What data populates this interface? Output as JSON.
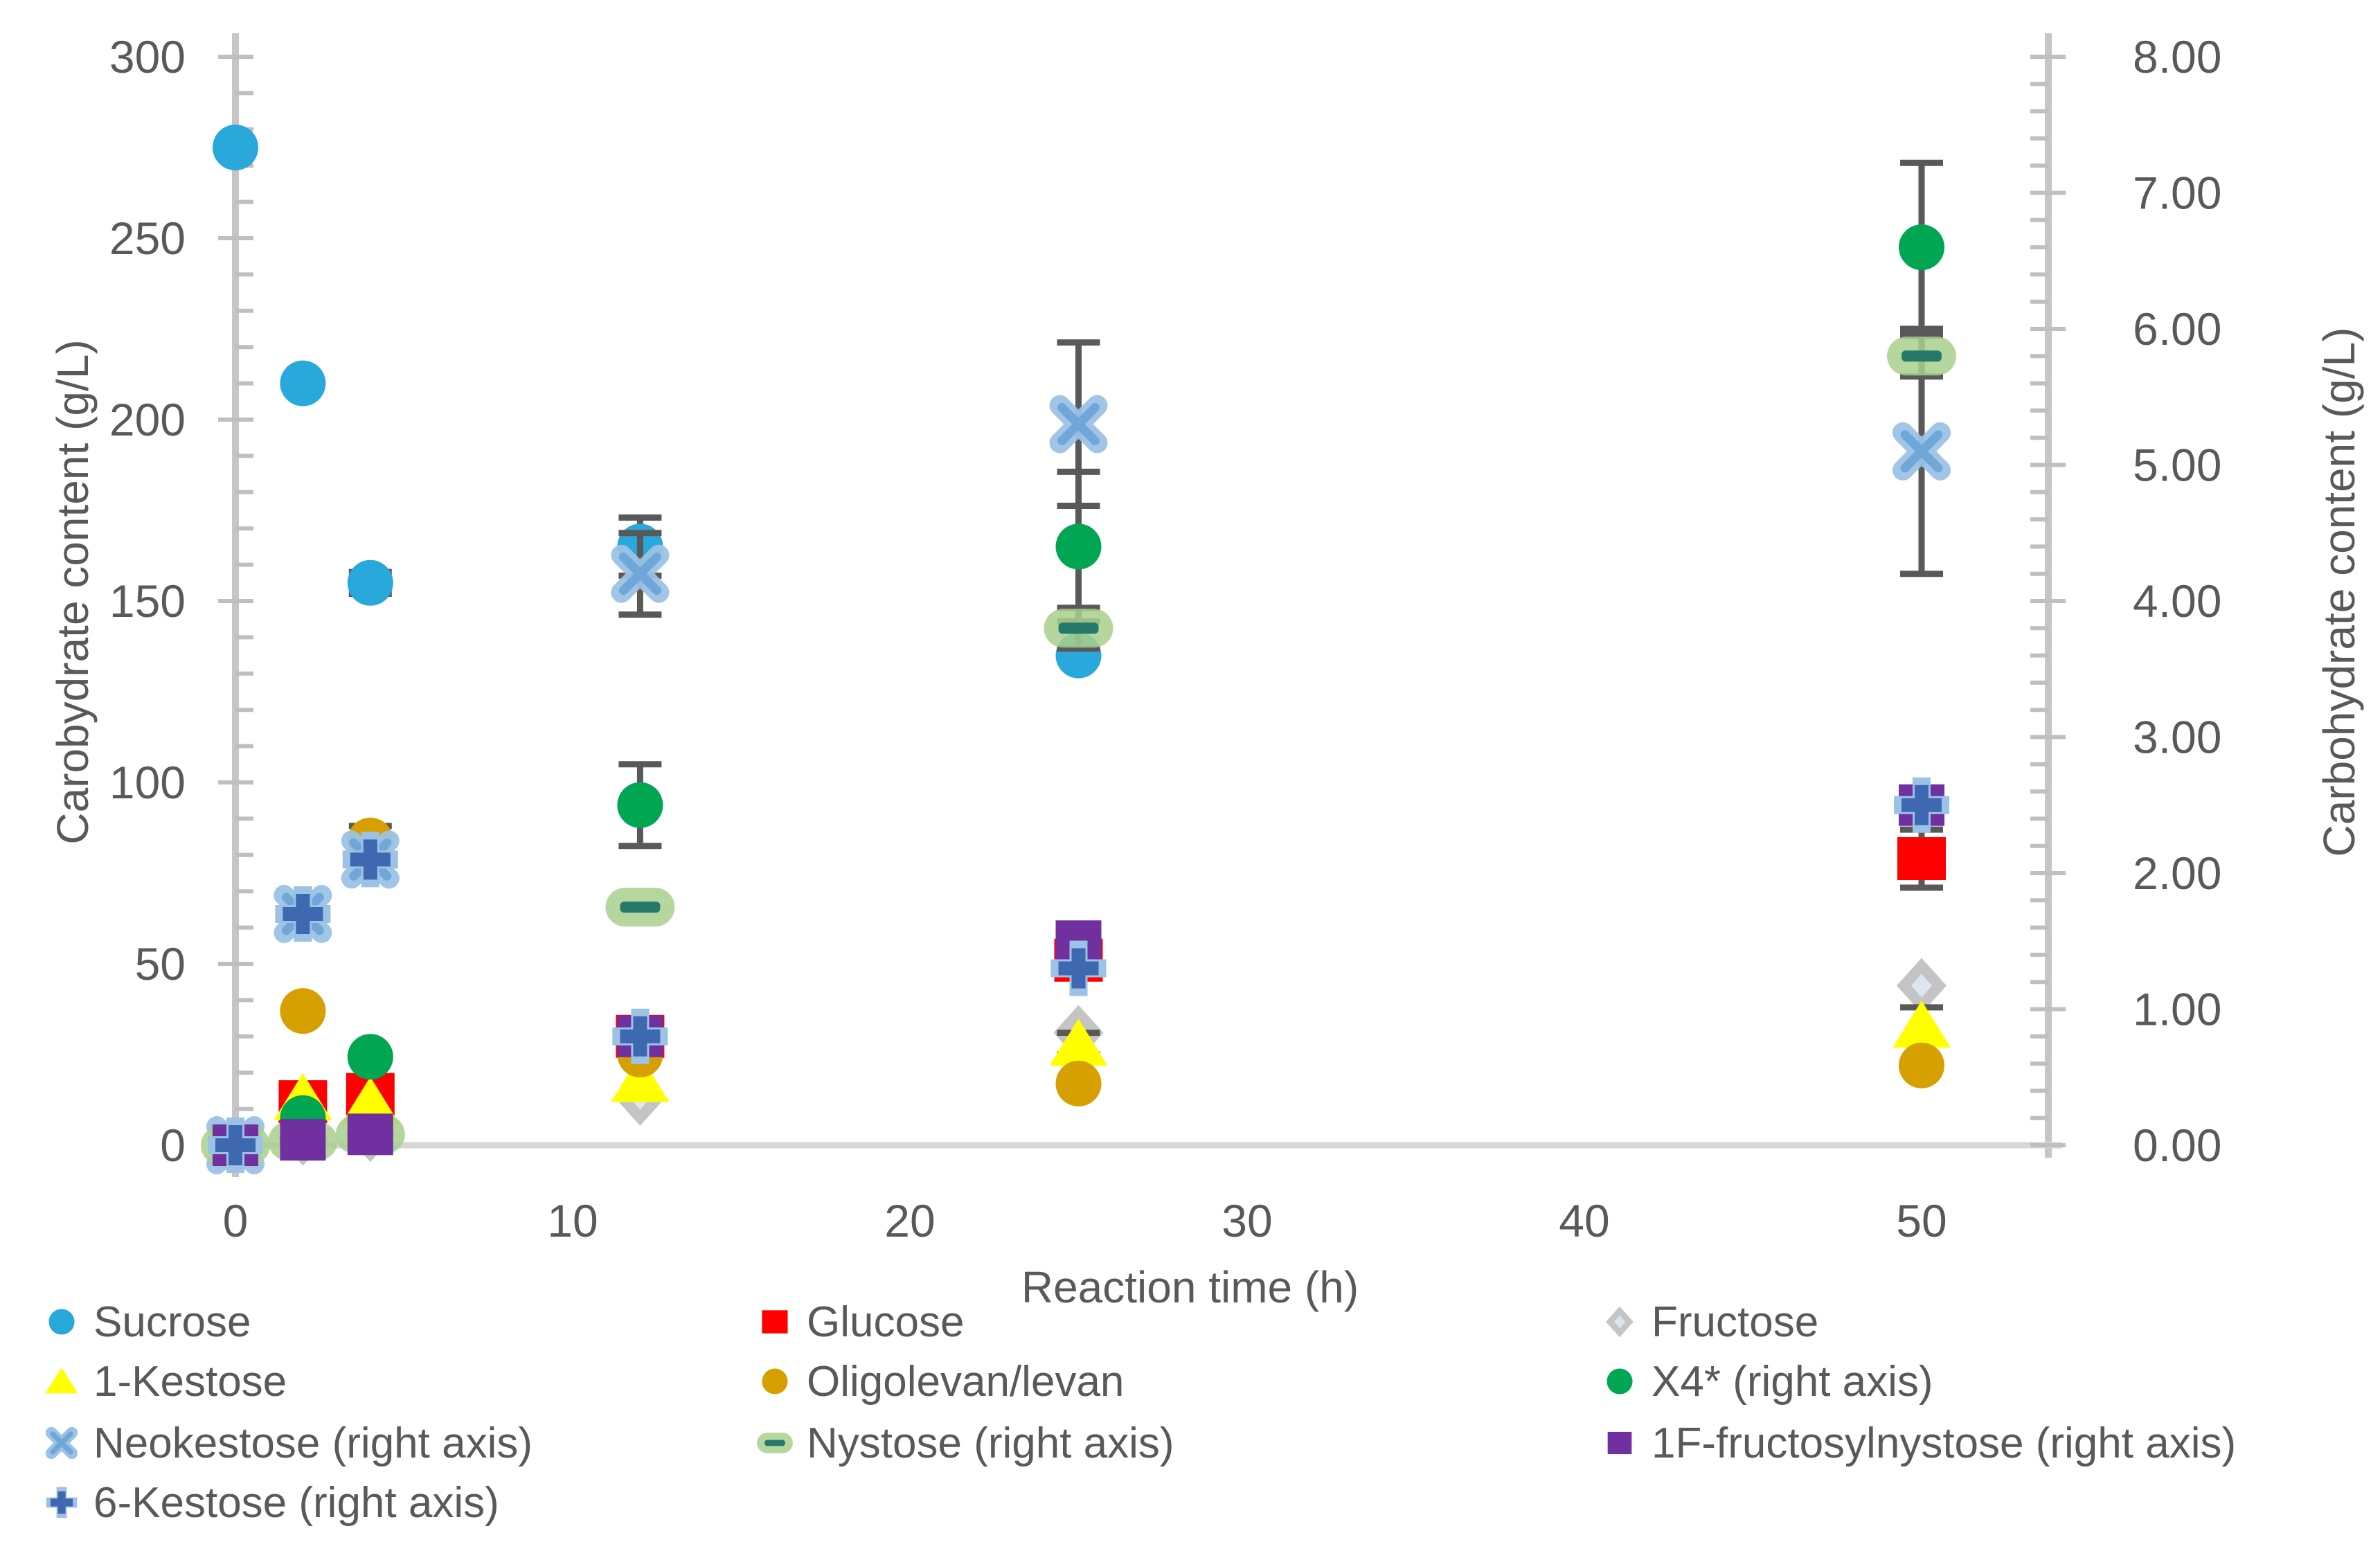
{
  "page": {
    "background": "#FFFFFF"
  },
  "chart_data": {
    "type": "scatter",
    "title": "",
    "xlabel": "Reaction time (h)",
    "ylabel_left": "Carobydrate content (g/L)",
    "ylabel_right": "Carbohydrate content (g/L)",
    "x_axis": {
      "min": 0,
      "max": 50,
      "major": 10
    },
    "left_axis": {
      "min": 0,
      "max": 300,
      "major": 50,
      "minor": 10,
      "decimals": 0
    },
    "right_axis": {
      "min": 0,
      "max": 8,
      "major": 1,
      "minor": 0.2,
      "decimals": 2
    },
    "grid": false,
    "error_bar_color": "#595959",
    "x": [
      0,
      2,
      4,
      12,
      25,
      50
    ],
    "series": [
      {
        "name": "Sucrose",
        "axis": "left",
        "marker": "circle",
        "color": "#29A8DC",
        "values": [
          275,
          210,
          155,
          165,
          135,
          null
        ],
        "errors": [
          null,
          null,
          3,
          8,
          null,
          null
        ]
      },
      {
        "name": "Glucose",
        "axis": "left",
        "marker": "square",
        "color": "#FF0000",
        "values": [
          0,
          12,
          14,
          30,
          51,
          79
        ],
        "errors": [
          null,
          null,
          null,
          null,
          null,
          8
        ]
      },
      {
        "name": "Fructose",
        "axis": "left",
        "marker": "diamond",
        "color": "#C4C4C4",
        "accent": "#DCE6F2",
        "values": [
          0,
          2,
          3,
          13,
          31,
          44
        ],
        "errors": [
          null,
          null,
          null,
          null,
          null,
          null
        ]
      },
      {
        "name": "1-Kestose",
        "axis": "left",
        "marker": "triangle",
        "color": "#FFFF00",
        "values": [
          0,
          13,
          12,
          18,
          28,
          33
        ],
        "errors": [
          null,
          null,
          null,
          null,
          3,
          5
        ]
      },
      {
        "name": "Oligolevan/levan",
        "axis": "left",
        "marker": "circle",
        "color": "#D6A000",
        "values": [
          0,
          37,
          84,
          25,
          17,
          22
        ],
        "errors": [
          null,
          null,
          4,
          null,
          null,
          null
        ]
      },
      {
        "name": "X4* (right axis)",
        "axis": "right",
        "marker": "circle",
        "color": "#00A651",
        "values": [
          0,
          0.2,
          0.65,
          2.5,
          4.4,
          6.6
        ],
        "errors": [
          null,
          null,
          null,
          0.3,
          0.55,
          0.62
        ]
      },
      {
        "name": "Neokestose (right axis)",
        "axis": "right",
        "marker": "xmark",
        "color": "#9CC2E5",
        "accent": "#6FA8D8",
        "values": [
          0,
          1.7,
          2.1,
          4.2,
          5.3,
          5.1
        ],
        "errors": [
          null,
          null,
          null,
          0.3,
          0.6,
          0.9
        ]
      },
      {
        "name": "Nystose (right axis)",
        "axis": "right",
        "marker": "dash",
        "color": "#A8D08D",
        "accent": "#26786A",
        "values": [
          0,
          0.03,
          0.08,
          1.75,
          3.8,
          5.8
        ],
        "errors": [
          null,
          null,
          null,
          null,
          0.15,
          0.15
        ]
      },
      {
        "name": "1F-fructosylnystose (right axis)",
        "axis": "right",
        "marker": "psquare",
        "color": "#7030A0",
        "values": [
          0,
          0.04,
          0.08,
          0.8,
          1.5,
          2.5
        ],
        "errors": [
          null,
          null,
          null,
          null,
          null,
          0.12
        ]
      },
      {
        "name": "6-Kestose (right axis)",
        "axis": "right",
        "marker": "plus",
        "color": "#3E68B0",
        "accent": "#9CC2E5",
        "values": [
          0,
          1.7,
          2.1,
          0.8,
          1.3,
          2.5
        ],
        "errors": [
          null,
          null,
          null,
          null,
          null,
          null
        ]
      }
    ],
    "legend": {
      "position": "bottom",
      "columns": 3,
      "entries": [
        {
          "label": "Sucrose",
          "series": "Sucrose",
          "col": 0,
          "row": 0
        },
        {
          "label": "Glucose",
          "series": "Glucose",
          "col": 1,
          "row": 0
        },
        {
          "label": "Fructose",
          "series": "Fructose",
          "col": 2,
          "row": 0
        },
        {
          "label": "1-Kestose",
          "series": "1-Kestose",
          "col": 0,
          "row": 1
        },
        {
          "label": "Oligolevan/levan",
          "series": "Oligolevan/levan",
          "col": 1,
          "row": 1
        },
        {
          "label": "X4* (right axis)",
          "series": "X4* (right axis)",
          "col": 2,
          "row": 1
        },
        {
          "label": "Neokestose (right axis)",
          "series": "Neokestose (right axis)",
          "col": 0,
          "row": 2
        },
        {
          "label": "Nystose (right axis)",
          "series": "Nystose (right axis)",
          "col": 1,
          "row": 2
        },
        {
          "label": "1F-fructosylnystose (right axis)",
          "series": "1F-fructosylnystose (right axis)",
          "col": 2,
          "row": 2
        },
        {
          "label": "6-Kestose (right axis)",
          "series": "6-Kestose (right axis)",
          "col": 0,
          "row": 3
        }
      ]
    }
  }
}
